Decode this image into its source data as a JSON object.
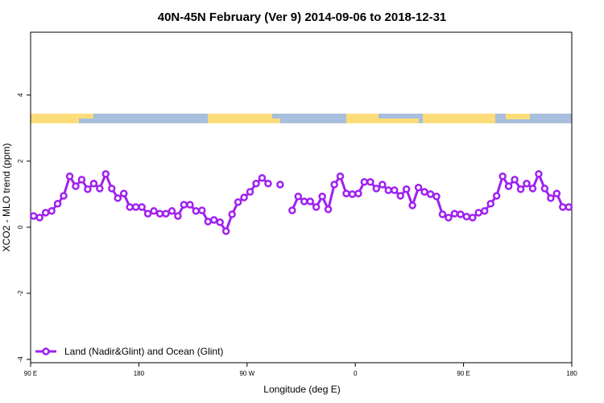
{
  "chart_data": {
    "type": "line",
    "title": "40N-45N February (Ver 9)   2014-09-06 to 2018-12-31",
    "xlabel": "Longitude (deg E)",
    "ylabel": "XCO2 - MLO trend (ppm)",
    "xlim": [
      90,
      540
    ],
    "ylim": [
      -4.1,
      5.9
    ],
    "xticks": [
      {
        "value": 90,
        "label": "90 E"
      },
      180,
      {
        "value": 270,
        "label": "90 W"
      },
      {
        "value": 360,
        "label": "0"
      },
      {
        "value": 450,
        "label": "90 E"
      },
      {
        "value": 540,
        "label": "180"
      }
    ],
    "yticks": [
      -4,
      -2,
      0,
      2,
      4
    ],
    "legend": "bottom-left",
    "x": [
      92.5,
      97.5,
      102.5,
      107.5,
      112.5,
      117.5,
      122.5,
      127.5,
      132.5,
      137.5,
      142.5,
      147.5,
      152.5,
      157.5,
      162.5,
      167.5,
      172.5,
      177.5,
      182.5,
      187.5,
      192.5,
      197.5,
      202.5,
      207.5,
      212.5,
      217.5,
      222.5,
      227.5,
      232.5,
      237.5,
      242.5,
      247.5,
      252.5,
      257.5,
      262.5,
      267.5,
      272.5,
      277.5,
      282.5,
      287.5,
      292.5,
      297.5,
      302.5,
      307.5,
      312.5,
      317.5,
      322.5,
      327.5,
      332.5,
      337.5,
      342.5,
      347.5,
      352.5,
      357.5,
      362.5,
      367.5,
      372.5,
      377.5,
      382.5,
      387.5,
      392.5,
      397.5,
      402.5,
      407.5,
      412.5,
      417.5,
      422.5,
      427.5,
      432.5,
      437.5,
      442.5,
      447.5,
      452.5,
      457.5,
      462.5,
      467.5,
      472.5,
      477.5,
      482.5,
      487.5,
      492.5,
      497.5,
      502.5,
      507.5,
      512.5,
      517.5,
      522.5,
      527.5,
      532.5,
      537.5
    ],
    "series": [
      {
        "name": "Land (Nadir&Glint) and Ocean (Glint)",
        "color": "#a020f0",
        "values": [
          0.34,
          0.29,
          0.44,
          0.49,
          0.71,
          0.95,
          1.54,
          1.24,
          1.44,
          1.15,
          1.32,
          1.17,
          1.61,
          1.17,
          0.88,
          1.02,
          0.61,
          0.61,
          0.61,
          0.41,
          0.49,
          0.41,
          0.41,
          0.49,
          0.34,
          0.68,
          0.68,
          0.49,
          0.51,
          0.17,
          0.22,
          0.15,
          -0.12,
          0.39,
          0.76,
          0.9,
          1.07,
          1.32,
          1.49,
          1.32,
          null,
          1.29,
          null,
          0.51,
          0.93,
          0.78,
          0.78,
          0.61,
          0.93,
          0.54,
          1.29,
          1.54,
          1.02,
          1.0,
          1.02,
          1.37,
          1.37,
          1.17,
          1.29,
          1.12,
          1.12,
          0.95,
          1.15,
          0.66,
          1.2,
          1.07,
          1.0,
          0.93,
          0.39,
          0.29,
          0.41,
          0.39,
          0.32,
          0.29,
          0.44,
          0.49,
          0.71,
          0.95,
          1.54,
          1.24,
          1.44,
          1.15,
          1.32,
          1.17,
          1.61,
          1.17,
          0.88,
          1.02,
          0.61,
          0.61
        ]
      }
    ]
  }
}
